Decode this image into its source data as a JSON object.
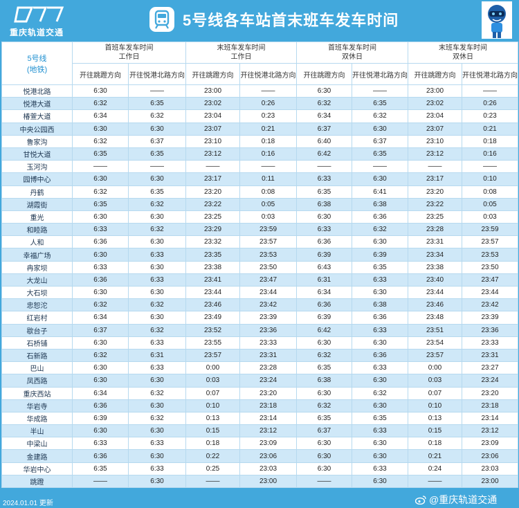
{
  "header": {
    "logo_text": "重庆轨道交通",
    "title": "5号线各车站首末班车发车时间"
  },
  "table": {
    "line_label_1": "5号线",
    "line_label_2": "(地铁)",
    "groups": [
      {
        "line1": "首班车发车时间",
        "line2": "工作日"
      },
      {
        "line1": "末班车发车时间",
        "line2": "工作日"
      },
      {
        "line1": "首班车发车时间",
        "line2": "双休日"
      },
      {
        "line1": "末班车发车时间",
        "line2": "双休日"
      }
    ],
    "directions": [
      "开往跳蹬方向",
      "开往悦港北路方向"
    ],
    "rows": [
      [
        "悦港北路",
        "6:30",
        "——",
        "23:00",
        "——",
        "6:30",
        "——",
        "23:00",
        "——"
      ],
      [
        "悦港大道",
        "6:32",
        "6:35",
        "23:02",
        "0:26",
        "6:32",
        "6:35",
        "23:02",
        "0:26"
      ],
      [
        "椿萱大道",
        "6:34",
        "6:32",
        "23:04",
        "0:23",
        "6:34",
        "6:32",
        "23:04",
        "0:23"
      ],
      [
        "中央公园西",
        "6:30",
        "6:30",
        "23:07",
        "0:21",
        "6:37",
        "6:30",
        "23:07",
        "0:21"
      ],
      [
        "鲁家沟",
        "6:32",
        "6:37",
        "23:10",
        "0:18",
        "6:40",
        "6:37",
        "23:10",
        "0:18"
      ],
      [
        "甘悦大道",
        "6:35",
        "6:35",
        "23:12",
        "0:16",
        "6:42",
        "6:35",
        "23:12",
        "0:16"
      ],
      [
        "玉河沟",
        "——",
        "——",
        "——",
        "——",
        "——",
        "——",
        "——",
        "——"
      ],
      [
        "园博中心",
        "6:30",
        "6:30",
        "23:17",
        "0:11",
        "6:33",
        "6:30",
        "23:17",
        "0:10"
      ],
      [
        "丹鹤",
        "6:32",
        "6:35",
        "23:20",
        "0:08",
        "6:35",
        "6:41",
        "23:20",
        "0:08"
      ],
      [
        "湖霞街",
        "6:35",
        "6:32",
        "23:22",
        "0:05",
        "6:38",
        "6:38",
        "23:22",
        "0:05"
      ],
      [
        "重光",
        "6:30",
        "6:30",
        "23:25",
        "0:03",
        "6:30",
        "6:36",
        "23:25",
        "0:03"
      ],
      [
        "和睦路",
        "6:33",
        "6:32",
        "23:29",
        "23:59",
        "6:33",
        "6:32",
        "23:28",
        "23:59"
      ],
      [
        "人和",
        "6:36",
        "6:30",
        "23:32",
        "23:57",
        "6:36",
        "6:30",
        "23:31",
        "23:57"
      ],
      [
        "幸福广场",
        "6:30",
        "6:33",
        "23:35",
        "23:53",
        "6:39",
        "6:39",
        "23:34",
        "23:53"
      ],
      [
        "冉家坝",
        "6:33",
        "6:30",
        "23:38",
        "23:50",
        "6:43",
        "6:35",
        "23:38",
        "23:50"
      ],
      [
        "大龙山",
        "6:36",
        "6:33",
        "23:41",
        "23:47",
        "6:31",
        "6:33",
        "23:40",
        "23:47"
      ],
      [
        "大石坝",
        "6:30",
        "6:30",
        "23:44",
        "23:44",
        "6:34",
        "6:30",
        "23:44",
        "23:44"
      ],
      [
        "忠恕沱",
        "6:32",
        "6:32",
        "23:46",
        "23:42",
        "6:36",
        "6:38",
        "23:46",
        "23:42"
      ],
      [
        "红岩村",
        "6:34",
        "6:30",
        "23:49",
        "23:39",
        "6:39",
        "6:36",
        "23:48",
        "23:39"
      ],
      [
        "歇台子",
        "6:37",
        "6:32",
        "23:52",
        "23:36",
        "6:42",
        "6:33",
        "23:51",
        "23:36"
      ],
      [
        "石桥铺",
        "6:30",
        "6:33",
        "23:55",
        "23:33",
        "6:30",
        "6:30",
        "23:54",
        "23:33"
      ],
      [
        "石新路",
        "6:32",
        "6:31",
        "23:57",
        "23:31",
        "6:32",
        "6:36",
        "23:57",
        "23:31"
      ],
      [
        "巴山",
        "6:30",
        "6:33",
        "0:00",
        "23:28",
        "6:35",
        "6:33",
        "0:00",
        "23:27"
      ],
      [
        "凤西路",
        "6:30",
        "6:30",
        "0:03",
        "23:24",
        "6:38",
        "6:30",
        "0:03",
        "23:24"
      ],
      [
        "重庆西站",
        "6:34",
        "6:32",
        "0:07",
        "23:20",
        "6:30",
        "6:32",
        "0:07",
        "23:20"
      ],
      [
        "华岩寺",
        "6:36",
        "6:30",
        "0:10",
        "23:18",
        "6:32",
        "6:30",
        "0:10",
        "23:18"
      ],
      [
        "华成路",
        "6:39",
        "6:32",
        "0:13",
        "23:14",
        "6:35",
        "6:35",
        "0:13",
        "23:14"
      ],
      [
        "半山",
        "6:30",
        "6:30",
        "0:15",
        "23:12",
        "6:37",
        "6:33",
        "0:15",
        "23:12"
      ],
      [
        "中梁山",
        "6:33",
        "6:33",
        "0:18",
        "23:09",
        "6:30",
        "6:30",
        "0:18",
        "23:09"
      ],
      [
        "金建路",
        "6:36",
        "6:30",
        "0:22",
        "23:06",
        "6:30",
        "6:30",
        "0:21",
        "23:06"
      ],
      [
        "华岩中心",
        "6:35",
        "6:33",
        "0:25",
        "23:03",
        "6:30",
        "6:33",
        "0:24",
        "23:03"
      ],
      [
        "跳蹬",
        "——",
        "6:30",
        "——",
        "23:00",
        "——",
        "6:30",
        "——",
        "23:00"
      ]
    ]
  },
  "footer": {
    "date": "2024.01.01 更新",
    "brand": "@重庆轨道交通"
  },
  "colors": {
    "brand_blue": "#42a8dc",
    "row_alt": "#cfe8f8",
    "border": "#b6d9ef"
  }
}
